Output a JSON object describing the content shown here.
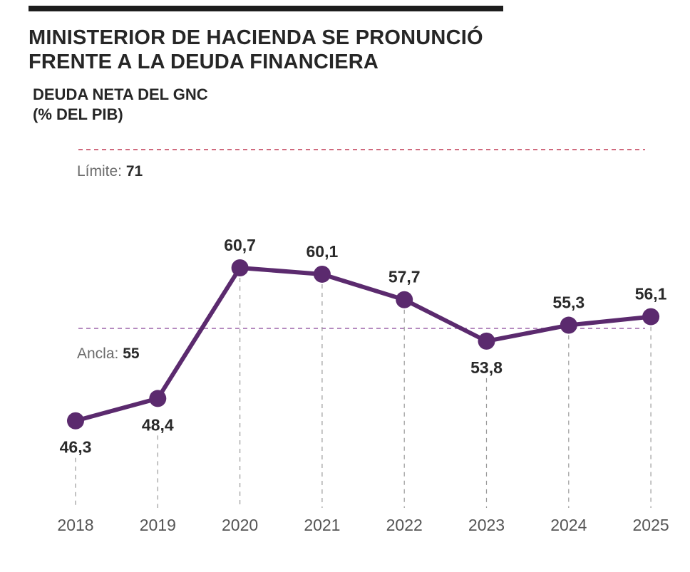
{
  "header": {
    "title_line1": "MINISTERIOR DE HACIENDA SE PRONUNCIÓ",
    "title_line2": "FRENTE A LA DEUDA FINANCIERA",
    "subtitle_line1": "DEUDA NETA DEL GNC",
    "subtitle_line2": "(% DEL PIB)"
  },
  "chart_data": {
    "type": "line",
    "title": "MINISTERIOR DE HACIENDA SE PRONUNCIÓ FRENTE A LA DEUDA FINANCIERA",
    "subtitle": "DEUDA NETA DEL GNC (% DEL PIB)",
    "categories": [
      "2018",
      "2019",
      "2020",
      "2021",
      "2022",
      "2023",
      "2024",
      "2025"
    ],
    "values": [
      46.3,
      48.4,
      60.7,
      60.1,
      57.7,
      53.8,
      55.3,
      56.1
    ],
    "value_labels": [
      "46,3",
      "48,4",
      "60,7",
      "60,1",
      "57,7",
      "53,8",
      "55,3",
      "56,1"
    ],
    "label_positions": [
      "below",
      "below",
      "above",
      "above",
      "above",
      "below",
      "above",
      "above"
    ],
    "reference_lines": [
      {
        "label": "Límite:",
        "value": 71,
        "value_label": "71",
        "color": "#d06a7e"
      },
      {
        "label": "Ancla:",
        "value": 55,
        "value_label": "55",
        "color": "#b58abf"
      }
    ],
    "series_color": "#5b2a6e",
    "gridlines": "vertical dashed",
    "legend": "none"
  }
}
